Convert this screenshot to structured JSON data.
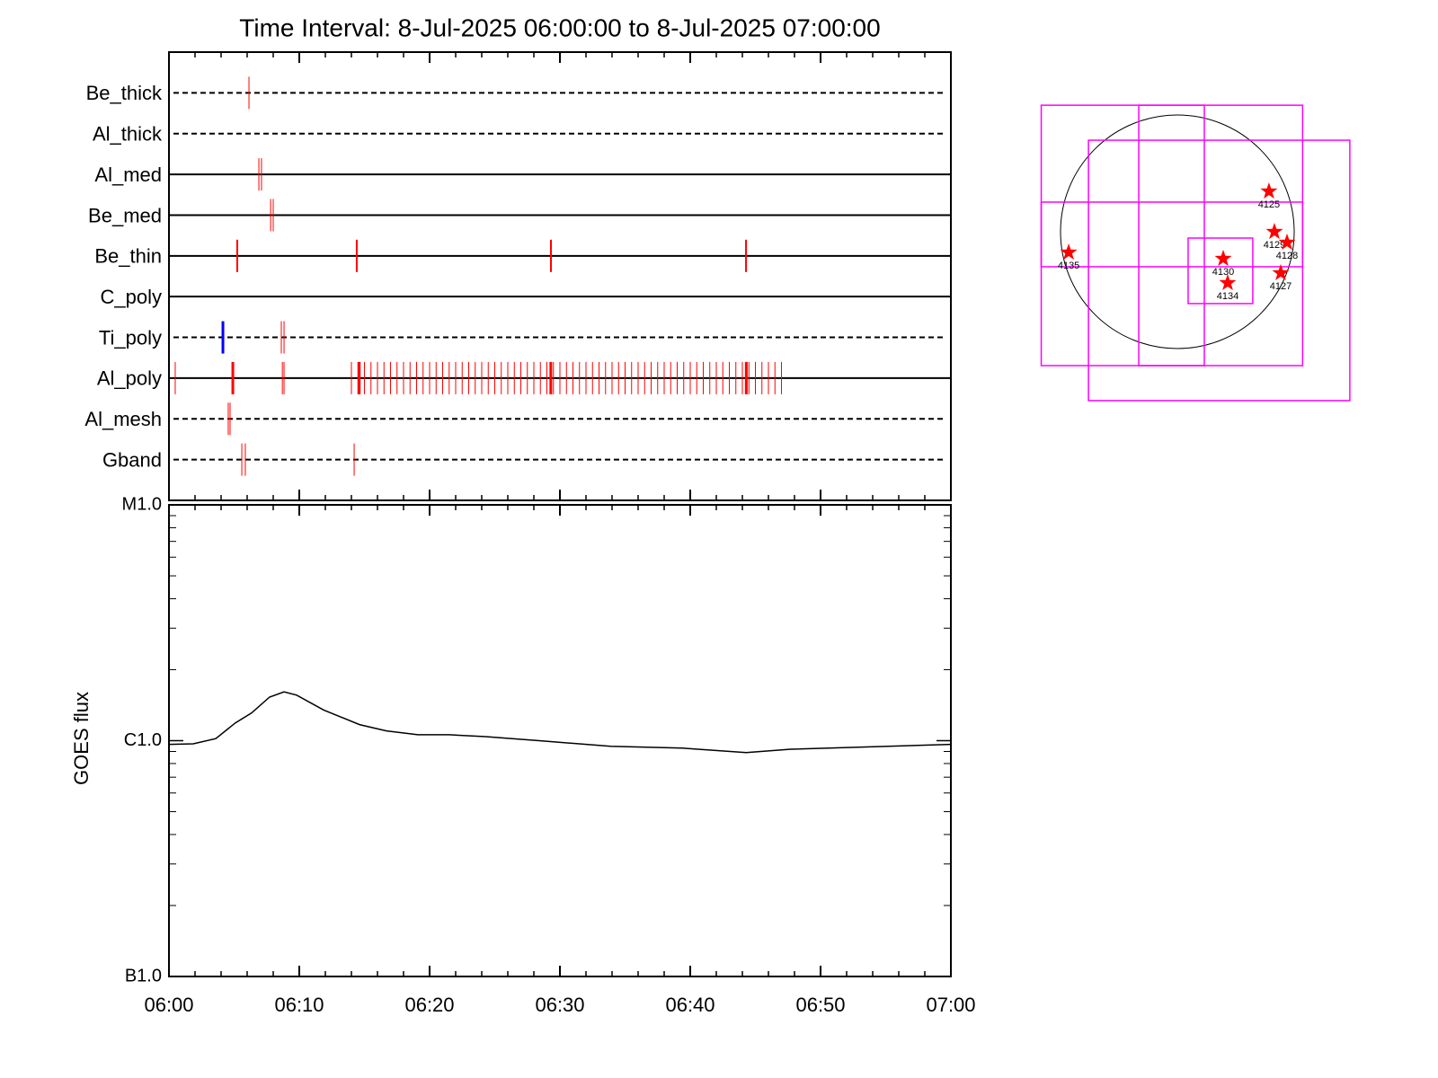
{
  "chart_data": [
    {
      "type": "event",
      "title": "Time Interval:  8-Jul-2025 06:00:00 to  8-Jul-2025 07:00:00",
      "xlim": [
        0,
        60
      ],
      "xticks": [
        0,
        10,
        20,
        30,
        40,
        50,
        60
      ],
      "xminorticks": [
        2,
        4,
        6,
        8,
        12,
        14,
        16,
        18,
        22,
        24,
        26,
        28,
        32,
        34,
        36,
        38,
        42,
        44,
        46,
        48,
        52,
        54,
        56,
        58
      ],
      "series": [
        {
          "name": "Be_thick",
          "line": "dashed",
          "events": [
            {
              "color": "#ff0000",
              "width": 1,
              "values": [
                6.14
              ]
            }
          ]
        },
        {
          "name": "Al_thick",
          "line": "dashed",
          "events": []
        },
        {
          "name": "Al_med",
          "line": "solid",
          "events": [
            {
              "color": "#ff0000",
              "width": 1,
              "values": [
                6.9,
                7.1
              ]
            }
          ]
        },
        {
          "name": "Be_med",
          "line": "solid",
          "events": [
            {
              "color": "#ff0000",
              "width": 1,
              "values": [
                7.8,
                8.0
              ]
            }
          ]
        },
        {
          "name": "Be_thin",
          "line": "solid",
          "events": [
            {
              "color": "#ff0000",
              "width": 2,
              "values": [
                5.24,
                14.41,
                29.31,
                44.28
              ]
            }
          ]
        },
        {
          "name": "C_poly",
          "line": "solid",
          "events": []
        },
        {
          "name": "Ti_poly",
          "line": "dashed",
          "events": [
            {
              "color": "#0000ff",
              "width": 3,
              "values": [
                4.14
              ]
            },
            {
              "color": "#ff0000",
              "width": 1,
              "values": [
                8.62,
                8.83
              ]
            }
          ]
        },
        {
          "name": "Al_poly",
          "line": "solid",
          "events": [
            {
              "color": "#ff0000",
              "width": 1,
              "values": [
                0.48,
                8.7,
                8.83,
                14,
                14.5,
                15,
                15.5,
                16,
                16.5,
                17,
                17.5,
                18,
                18.5,
                19,
                19.5,
                20,
                20.5,
                21,
                21.5,
                22,
                22.5,
                23,
                23.5,
                24,
                24.5,
                25,
                25.5,
                26,
                26.5,
                27,
                27.5,
                28,
                28.5,
                29,
                29.5,
                30,
                30.5,
                31,
                31.5,
                32,
                32.5,
                33,
                33.5,
                34,
                34.5,
                35,
                35.5,
                36,
                36.5,
                37,
                37.5,
                38,
                38.5,
                39,
                39.5,
                40,
                40.5,
                41,
                41.5,
                42,
                42.5,
                43,
                43.5,
                44,
                44.5,
                45,
                45.5,
                46,
                46.5,
                47
              ]
            },
            {
              "color": "#ff0000",
              "width": 3,
              "values": [
                4.9,
                14.6,
                29.3,
                44.3
              ]
            }
          ]
        },
        {
          "name": "Al_mesh",
          "line": "dashed",
          "events": [
            {
              "color": "#ff0000",
              "width": 1,
              "values": [
                4.55,
                4.69
              ]
            }
          ]
        },
        {
          "name": "Gband",
          "line": "dashed",
          "events": [
            {
              "color": "#ff0000",
              "width": 1,
              "values": [
                5.59,
                5.86,
                14.21
              ]
            }
          ]
        }
      ]
    },
    {
      "type": "line",
      "ylabel": "GOES flux",
      "ylog": true,
      "color": "#000000",
      "xlim": [
        0,
        60
      ],
      "xticks": [
        {
          "value": 0,
          "label": "06:00"
        },
        {
          "value": 10,
          "label": "06:10"
        },
        {
          "value": 20,
          "label": "06:20"
        },
        {
          "value": 30,
          "label": "06:30"
        },
        {
          "value": 40,
          "label": "06:40"
        },
        {
          "value": 50,
          "label": "06:50"
        },
        {
          "value": 60,
          "label": "07:00"
        }
      ],
      "xminorticks": [
        2,
        4,
        6,
        8,
        12,
        14,
        16,
        18,
        22,
        24,
        26,
        28,
        32,
        34,
        36,
        38,
        42,
        44,
        46,
        48,
        52,
        54,
        56,
        58
      ],
      "ylim": [
        1e-07,
        1e-05
      ],
      "yticks": [
        {
          "value": 1e-07,
          "label": "B1.0"
        },
        {
          "value": 1e-06,
          "label": "C1.0"
        },
        {
          "value": 1e-05,
          "label": "M1.0"
        }
      ],
      "yminorticks": [
        2e-07,
        3e-07,
        4e-07,
        5e-07,
        6e-07,
        7e-07,
        8e-07,
        9e-07,
        2e-06,
        3e-06,
        4e-06,
        5e-06,
        6e-06,
        7e-06,
        8e-06,
        9e-06
      ],
      "x": [
        0,
        1.86,
        3.59,
        5.1,
        6.34,
        7.72,
        8.83,
        9.8,
        11.86,
        14.62,
        16.69,
        19.1,
        21.5,
        24.3,
        28.4,
        33.9,
        39.4,
        44.3,
        47.7,
        53.2,
        60
      ],
      "values": [
        9.65e-07,
        9.7e-07,
        1.02e-06,
        1.19e-06,
        1.31e-06,
        1.53e-06,
        1.61e-06,
        1.56e-06,
        1.35e-06,
        1.17e-06,
        1.1e-06,
        1.06e-06,
        1.06e-06,
        1.04e-06,
        1e-06,
        9.47e-07,
        9.3e-07,
        8.9e-07,
        9.2e-07,
        9.4e-07,
        9.65e-07
      ]
    },
    {
      "type": "map",
      "disk_radius": 945,
      "disk_color": "#000000",
      "box_color": "#ff00ff",
      "point_color": "#ff0000",
      "boxes": [
        [
          -1101,
          -1083,
          1013,
          1024
        ],
        [
          -719,
          -1366,
          1395,
          741
        ],
        [
          87,
          -581,
          610,
          -51
        ],
        [
          -312,
          -1083,
          218,
          1024
        ],
        [
          -1101,
          -283,
          1013,
          240
        ]
      ],
      "points": [
        {
          "name": "4125",
          "x": 741,
          "y": 327
        },
        {
          "name": "4129",
          "x": 785,
          "y": 0
        },
        {
          "name": "4128",
          "x": 887,
          "y": -87
        },
        {
          "name": "4135",
          "x": -879,
          "y": -167
        },
        {
          "name": "4130",
          "x": 371,
          "y": -218
        },
        {
          "name": "4134",
          "x": 407,
          "y": -414
        },
        {
          "name": "4127",
          "x": 836,
          "y": -334
        }
      ]
    }
  ]
}
